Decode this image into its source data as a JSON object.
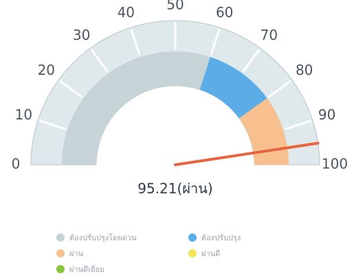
{
  "chart_data": {
    "type": "gauge",
    "value": 95.21,
    "value_label": "95.21(ผ่าน)",
    "needle_color": "#e8643c",
    "ylim": [
      0,
      100
    ],
    "yticks": [
      0,
      10,
      20,
      30,
      40,
      50,
      60,
      70,
      80,
      90,
      100
    ],
    "series": [
      {
        "name": "ต้องปรับปรุงโดยด่วน",
        "color": "#c6d3d7",
        "range": [
          0,
          60
        ]
      },
      {
        "name": "ต้องปรับปรุง",
        "color": "#5aade6",
        "range": [
          60,
          80
        ]
      },
      {
        "name": "ผ่าน",
        "color": "#f8c08e",
        "range": [
          80,
          100
        ]
      },
      {
        "name": "ผ่านดี",
        "color": "#f4e55c"
      },
      {
        "name": "ผ่านดีเยี่ยม",
        "color": "#8cc43f"
      }
    ]
  }
}
